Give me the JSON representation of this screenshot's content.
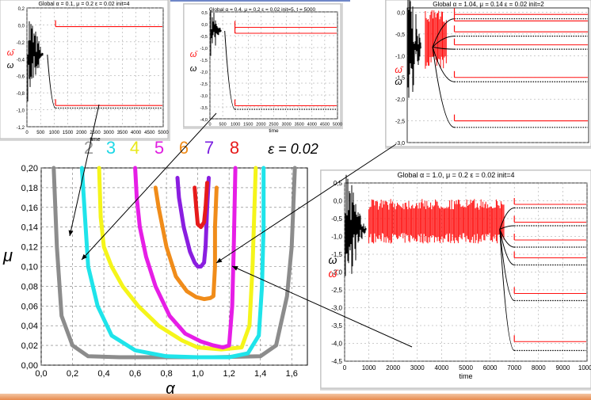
{
  "colors": {
    "gray": "#8c8c8c",
    "cyan": "#1fe4ea",
    "yellow": "#f5f51a",
    "magenta": "#e61ee6",
    "orange": "#f08c1a",
    "purple": "#8a1ee0",
    "red": "#e61a1a",
    "dataRed": "#ff1010",
    "dataBlack": "#000000"
  },
  "legend": {
    "items": [
      {
        "label": "2",
        "color": "#9a9a9a"
      },
      {
        "label": "3",
        "color": "#1fd8e6"
      },
      {
        "label": "4",
        "color": "#e8e81a"
      },
      {
        "label": "5",
        "color": "#e01ee0"
      },
      {
        "label": "6",
        "color": "#f08c1a"
      },
      {
        "label": "7",
        "color": "#7a1ee0"
      },
      {
        "label": "8",
        "color": "#e61a1a"
      }
    ],
    "epsilon": "ε = 0.02"
  },
  "chart_data": [
    {
      "id": "phase-diagram",
      "type": "line",
      "xlabel": "α",
      "ylabel": "μ",
      "xlim": [
        0.0,
        1.7
      ],
      "ylim": [
        0.0,
        0.2
      ],
      "x_ticks": [
        "0,0",
        "0,2",
        "0,4",
        "0,6",
        "0,8",
        "1,0",
        "1,2",
        "1,4",
        "1,6"
      ],
      "y_ticks": [
        "0,00",
        "0,02",
        "0,04",
        "0,06",
        "0,08",
        "0,10",
        "0,12",
        "0,14",
        "0,16",
        "0,18",
        "0,20"
      ],
      "grid": true,
      "series": [
        {
          "name": "2",
          "color": "#8c8c8c",
          "points": [
            [
              0.08,
              0.2
            ],
            [
              0.1,
              0.12
            ],
            [
              0.13,
              0.05
            ],
            [
              0.2,
              0.02
            ],
            [
              0.3,
              0.009
            ],
            [
              0.5,
              0.008
            ],
            [
              0.8,
              0.008
            ],
            [
              1.1,
              0.008
            ],
            [
              1.4,
              0.009
            ],
            [
              1.5,
              0.02
            ],
            [
              1.57,
              0.07
            ],
            [
              1.6,
              0.12
            ],
            [
              1.62,
              0.2
            ]
          ]
        },
        {
          "name": "3",
          "color": "#1fe4ea",
          "points": [
            [
              0.26,
              0.2
            ],
            [
              0.28,
              0.15
            ],
            [
              0.3,
              0.1
            ],
            [
              0.36,
              0.06
            ],
            [
              0.45,
              0.03
            ],
            [
              0.6,
              0.015
            ],
            [
              0.8,
              0.009
            ],
            [
              1.0,
              0.008
            ],
            [
              1.2,
              0.008
            ],
            [
              1.32,
              0.012
            ],
            [
              1.39,
              0.03
            ],
            [
              1.41,
              0.08
            ],
            [
              1.42,
              0.14
            ],
            [
              1.42,
              0.2
            ]
          ]
        },
        {
          "name": "4",
          "color": "#f5f51a",
          "points": [
            [
              0.37,
              0.2
            ],
            [
              0.38,
              0.15
            ],
            [
              0.4,
              0.12
            ],
            [
              0.45,
              0.1
            ],
            [
              0.52,
              0.08
            ],
            [
              0.62,
              0.06
            ],
            [
              0.75,
              0.04
            ],
            [
              0.9,
              0.025
            ],
            [
              1.0,
              0.018
            ],
            [
              1.15,
              0.016
            ],
            [
              1.28,
              0.018
            ],
            [
              1.33,
              0.04
            ],
            [
              1.35,
              0.1
            ],
            [
              1.36,
              0.15
            ],
            [
              1.37,
              0.2
            ]
          ]
        },
        {
          "name": "5",
          "color": "#e61ee6",
          "points": [
            [
              0.6,
              0.2
            ],
            [
              0.61,
              0.17
            ],
            [
              0.63,
              0.14
            ],
            [
              0.67,
              0.11
            ],
            [
              0.73,
              0.08
            ],
            [
              0.82,
              0.05
            ],
            [
              0.92,
              0.032
            ],
            [
              1.02,
              0.024
            ],
            [
              1.1,
              0.02
            ],
            [
              1.16,
              0.018
            ],
            [
              1.2,
              0.02
            ],
            [
              1.22,
              0.06
            ],
            [
              1.23,
              0.12
            ],
            [
              1.24,
              0.2
            ]
          ]
        },
        {
          "name": "6",
          "color": "#f08c1a",
          "points": [
            [
              0.73,
              0.18
            ],
            [
              0.75,
              0.16
            ],
            [
              0.8,
              0.12
            ],
            [
              0.86,
              0.09
            ],
            [
              0.93,
              0.075
            ],
            [
              0.99,
              0.069
            ],
            [
              1.04,
              0.067
            ],
            [
              1.08,
              0.068
            ],
            [
              1.1,
              0.07
            ],
            [
              1.11,
              0.1
            ],
            [
              1.11,
              0.14
            ],
            [
              1.12,
              0.18
            ]
          ]
        },
        {
          "name": "7",
          "color": "#8a1ee0",
          "points": [
            [
              0.87,
              0.19
            ],
            [
              0.88,
              0.17
            ],
            [
              0.91,
              0.14
            ],
            [
              0.95,
              0.115
            ],
            [
              0.98,
              0.104
            ],
            [
              1.0,
              0.1
            ],
            [
              1.02,
              0.1
            ],
            [
              1.04,
              0.104
            ],
            [
              1.05,
              0.12
            ],
            [
              1.06,
              0.16
            ],
            [
              1.07,
              0.19
            ]
          ]
        },
        {
          "name": "8",
          "color": "#e61a1a",
          "points": [
            [
              0.98,
              0.18
            ],
            [
              0.99,
              0.16
            ],
            [
              1.0,
              0.143
            ],
            [
              1.02,
              0.14
            ],
            [
              1.04,
              0.145
            ],
            [
              1.05,
              0.16
            ],
            [
              1.06,
              0.185
            ]
          ]
        }
      ]
    },
    {
      "id": "ts-a",
      "type": "line",
      "title": "Global α = 0.1, μ = 0.2 ε = 0.02 init=4",
      "xlabel": "time",
      "ylabel_red": "ω̄",
      "ylabel_black": "ω",
      "xlim": [
        0,
        5000
      ],
      "ylim": [
        -1.2,
        0.2
      ],
      "x_ticks": [
        "0",
        "500",
        "1000",
        "1500",
        "2000",
        "2500",
        "3000",
        "3500",
        "4000",
        "4500",
        "5000"
      ],
      "y_ticks": [
        "0,2",
        "0,0",
        "-0,2",
        "-0,4",
        "-0,6",
        "-0,8",
        "-1,0",
        "-1,2"
      ],
      "plateaus_red": [
        -0.02,
        -0.95
      ],
      "plateaus_black": [
        -0.98
      ]
    },
    {
      "id": "ts-b",
      "type": "line",
      "title": "Global α = 0.4, μ = 0.2 ε = 0.02 init=5, t = 5000",
      "xlabel": "time",
      "ylabel_red": "ω̄",
      "ylabel_black": "ω",
      "xlim": [
        0,
        5000
      ],
      "ylim": [
        -4.0,
        0.5
      ],
      "x_ticks": [
        "0",
        "500",
        "1000",
        "1500",
        "2000",
        "2500",
        "3000",
        "3500",
        "4000",
        "4500",
        "5000"
      ],
      "y_ticks": [
        "0,5",
        "0,0",
        "-0,5",
        "-1,0",
        "-1,5",
        "-2,0",
        "-2,5",
        "-3,0",
        "-3,5",
        "-4,0"
      ],
      "plateaus_red": [
        -0.15,
        -0.4,
        -3.45
      ],
      "plateaus_black": [
        -3.6
      ]
    },
    {
      "id": "ts-c",
      "type": "line",
      "title": "Global α = 1.04, μ = 0.14 ε = 0.02 init=2",
      "ylabel_red": "ω̄",
      "ylabel_black": "ω",
      "xlim": [
        0,
        5000
      ],
      "ylim": [
        -3.0,
        0.1
      ],
      "y_ticks": [
        "0,0",
        "-0,5",
        "-1,0",
        "-1,5",
        "-2,0",
        "-2,5",
        "-3,0"
      ],
      "plateaus_red": [
        -0.05,
        -0.2,
        -0.45,
        -0.75,
        -1.5,
        -2.5
      ],
      "plateaus_black": [
        -0.15,
        -0.55,
        -0.85,
        -1.6,
        -2.65
      ]
    },
    {
      "id": "ts-d",
      "type": "line",
      "title": "Global α = 1.0, μ = 0.2 ε = 0.02 init=4",
      "xlabel": "time",
      "ylabel_black": "ω",
      "ylabel_red": "ω̄",
      "xlim": [
        0,
        10000
      ],
      "ylim": [
        -4.5,
        0.5
      ],
      "x_ticks": [
        "0",
        "1000",
        "2000",
        "3000",
        "4000",
        "5000",
        "6000",
        "7000",
        "8000",
        "9000",
        "10000"
      ],
      "y_ticks": [
        "0,5",
        "0,0",
        "-0,5",
        "-1,0",
        "-1,5",
        "-2,0",
        "-2,5",
        "-3,0",
        "-3,5",
        "-4,0",
        "-4,5"
      ],
      "plateaus_red": [
        -0.1,
        -0.6,
        -1.1,
        -1.6,
        -2.6,
        -3.95
      ],
      "plateaus_black": [
        -0.2,
        -0.7,
        -1.3,
        -1.8,
        -2.8,
        -4.2
      ]
    }
  ]
}
